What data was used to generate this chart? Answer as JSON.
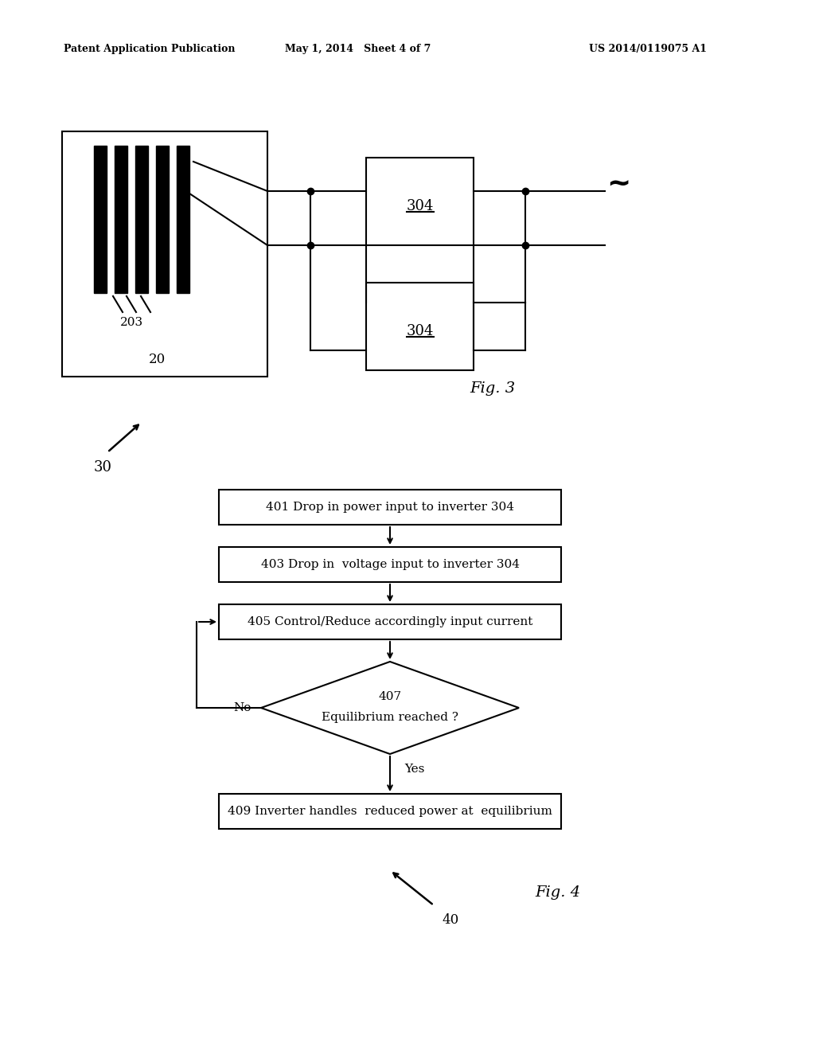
{
  "background_color": "#ffffff",
  "header_left": "Patent Application Publication",
  "header_center": "May 1, 2014   Sheet 4 of 7",
  "header_right": "US 2014/0119075 A1",
  "fig3_label": "Fig. 3",
  "fig4_label": "Fig. 4",
  "label_20": "20",
  "label_30": "30",
  "label_40": "40",
  "label_203": "203",
  "label_304a": "304",
  "label_304b": "304",
  "box401_text": "401 Drop in power input to inverter 304",
  "box403_text": "403 Drop in  voltage input to inverter 304",
  "box405_text": "405 Control/Reduce accordingly input current",
  "diamond407_line1": "407",
  "diamond407_line2": "Equilibrium reached ?",
  "box409_text": "409 Inverter handles  reduced power at  equilibrium",
  "label_no": "No",
  "label_yes": "Yes"
}
